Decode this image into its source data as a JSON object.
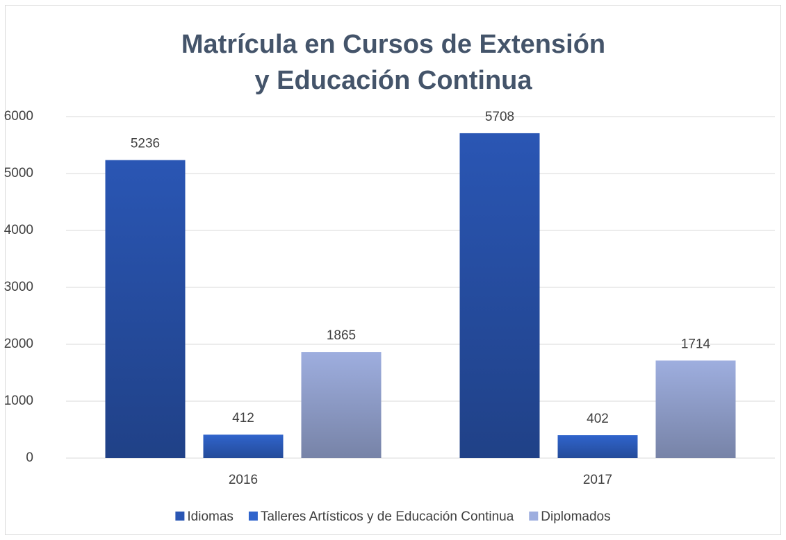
{
  "chart_data": {
    "type": "bar",
    "title": "Matrícula en Cursos de Extensión y Educación Continua",
    "categories": [
      "2016",
      "2017"
    ],
    "series": [
      {
        "name": "Idiomas",
        "color": "#2a56b4",
        "values": [
          5236,
          5708
        ]
      },
      {
        "name": "Talleres Artísticos y de Educación Continua",
        "color": "#3064cc",
        "values": [
          412,
          402
        ]
      },
      {
        "name": "Diplomados",
        "color": "#9eaedf",
        "values": [
          1865,
          1714
        ]
      }
    ],
    "ylim": [
      0,
      6000
    ],
    "yticks": [
      0,
      1000,
      2000,
      3000,
      4000,
      5000,
      6000
    ],
    "grid": true,
    "legend": "bottom"
  }
}
